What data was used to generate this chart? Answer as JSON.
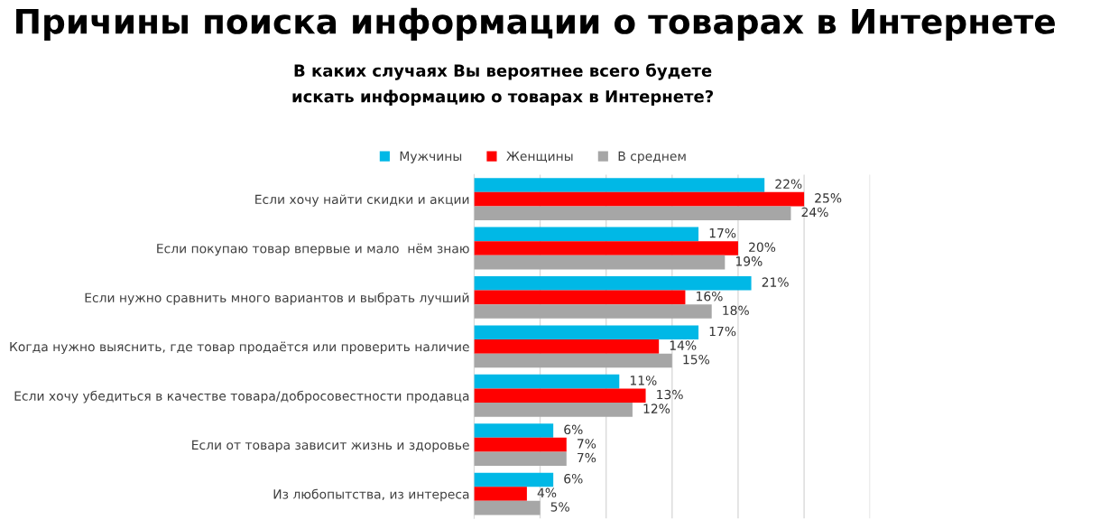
{
  "chart_data": {
    "type": "bar",
    "orientation": "horizontal",
    "title": "Причины поиска информации о товарах в Интернете",
    "subtitle": "В каких случаях Вы вероятнее всего будете\nискать информацию о товарах в Интернете?",
    "categories": [
      "Если хочу найти скидки и акции",
      "Если покупаю товар впервые и мало  нём знаю",
      "Если нужно сравнить много вариантов и выбрать лучший",
      "Когда нужно выяснить, где товар продаётся или проверить наличие",
      "Если хочу убедиться в качестве товара/добросовестности продавца",
      "Если от товара зависит жизнь и здоровье",
      "Из любопытства, из интереса"
    ],
    "series": [
      {
        "name": "Мужчины",
        "color": "#00b8e6",
        "values": [
          22,
          17,
          21,
          17,
          11,
          6,
          6
        ],
        "value_labels": [
          "22%",
          "17%",
          "21%",
          "17%",
          "11%",
          "6%",
          "6%"
        ]
      },
      {
        "name": "Женщины",
        "color": "#ff0000",
        "values": [
          25,
          20,
          16,
          14,
          13,
          7,
          4
        ],
        "value_labels": [
          "25%",
          "20%",
          "16%",
          "14%",
          "13%",
          "7%",
          "4%"
        ]
      },
      {
        "name": "В среднем",
        "color": "#a6a6a6",
        "values": [
          24,
          19,
          18,
          15,
          12,
          7,
          5
        ],
        "value_labels": [
          "24%",
          "19%",
          "18%",
          "15%",
          "12%",
          "7%",
          "5%"
        ]
      }
    ],
    "xlim": [
      0,
      30
    ],
    "xticks": [
      {
        "value": 0,
        "label": null
      },
      {
        "value": 5,
        "label": null
      },
      {
        "value": 10,
        "label": null
      },
      {
        "value": 15,
        "label": null
      },
      {
        "value": 20,
        "label": null
      },
      {
        "value": 25,
        "label": null
      },
      {
        "value": 30,
        "label": null
      }
    ],
    "grid": "x",
    "legend": "top"
  }
}
